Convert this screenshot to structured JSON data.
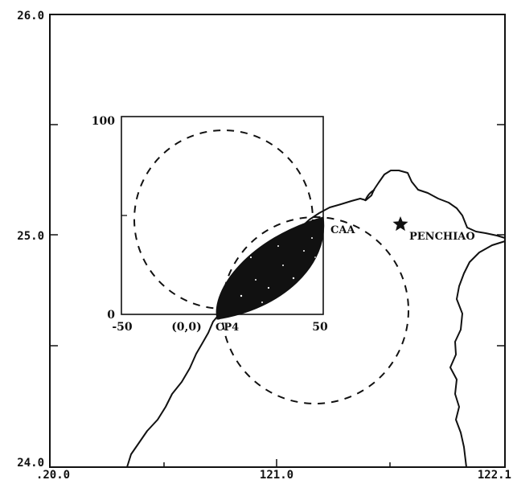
{
  "map": {
    "outer_axes": {
      "y_ticks": [
        "26.0",
        "25.0",
        "24.0"
      ],
      "x_ticks": [
        ".20.0",
        "121.0",
        "122.1"
      ]
    },
    "inset_axes": {
      "y_ticks": [
        "100",
        "0"
      ],
      "x_ticks": [
        "-50",
        "50"
      ],
      "origin_label": "(0,0)"
    },
    "labels": {
      "cp4": "CP4",
      "caa": "CAA",
      "station": "PENCHIAO"
    },
    "icons": {
      "station_marker": "star-icon"
    },
    "colors": {
      "ink": "#111111",
      "background": "#ffffff"
    }
  }
}
